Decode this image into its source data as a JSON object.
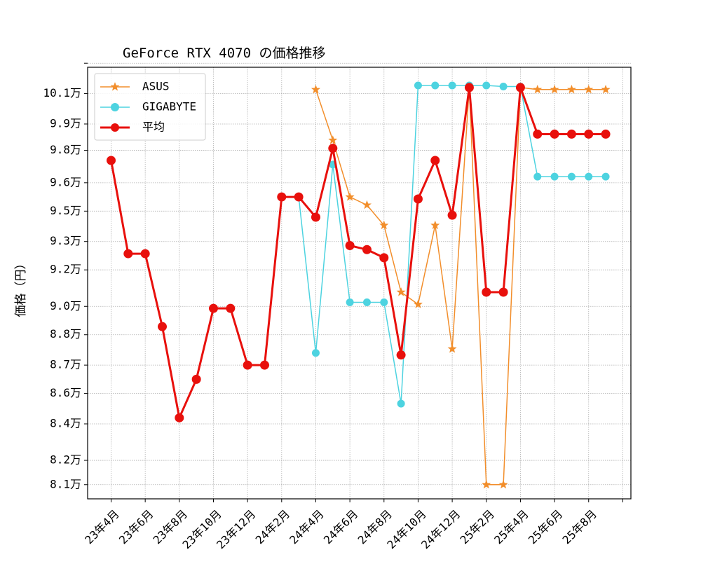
{
  "chart_data": {
    "type": "line",
    "title": "GeForce RTX 4070 の価格推移",
    "xlabel": "",
    "ylabel": "価格（円）",
    "ylim": [
      80300,
      101600
    ],
    "grid": true,
    "legend_position": "top-left",
    "x_tick_labels": [
      "23年4月",
      "23年6月",
      "23年8月",
      "23年10月",
      "23年12月",
      "24年2月",
      "24年4月",
      "24年6月",
      "24年8月",
      "24年10月",
      "24年12月",
      "25年2月",
      "25年4月",
      "25年6月",
      "25年8月"
    ],
    "y_ticks": [
      81000,
      82200,
      84000,
      85500,
      86900,
      88400,
      89800,
      91600,
      93000,
      94500,
      95900,
      97500,
      98800,
      100300,
      101800
    ],
    "y_tick_labels": [
      "8.1万",
      "8.2万",
      "8.4万",
      "8.6万",
      "8.7万",
      "8.8万",
      "9.0万",
      "9.2万",
      "9.3万",
      "9.5万",
      "9.6万",
      "9.8万",
      "9.9万",
      "10.1万"
    ],
    "x": [
      "2023-04",
      "2023-05",
      "2023-06",
      "2023-07",
      "2023-08",
      "2023-09",
      "2023-10",
      "2023-11",
      "2023-12",
      "2024-01",
      "2024-02",
      "2024-03",
      "2024-04",
      "2024-05",
      "2024-06",
      "2024-07",
      "2024-08",
      "2024-09",
      "2024-10",
      "2024-11",
      "2024-12",
      "2025-01",
      "2025-02",
      "2025-03",
      "2025-04",
      "2025-05",
      "2025-06",
      "2025-07",
      "2025-08",
      "2025-09"
    ],
    "series": [
      {
        "name": "ASUS",
        "color": "#f28e2b",
        "marker": "star",
        "line_width": 1.5,
        "values": [
          null,
          null,
          null,
          null,
          null,
          null,
          null,
          null,
          null,
          null,
          null,
          null,
          100500,
          98000,
          95200,
          94800,
          93800,
          90500,
          89900,
          93800,
          87700,
          100600,
          81000,
          81000,
          100600,
          100500,
          100500,
          100500,
          100500,
          100500
        ]
      },
      {
        "name": "GIGABYTE",
        "color": "#4dd3e0",
        "marker": "circle",
        "line_width": 1.5,
        "values": [
          null,
          null,
          null,
          null,
          null,
          null,
          null,
          null,
          null,
          null,
          null,
          95200,
          87500,
          96800,
          90000,
          90000,
          90000,
          85000,
          100700,
          100700,
          100700,
          100700,
          100700,
          100650,
          100650,
          96200,
          96200,
          96200,
          96200,
          96200
        ]
      },
      {
        "name": "平均",
        "color": "#e8100c",
        "marker": "circle",
        "line_width": 3,
        "values": [
          97000,
          92400,
          92400,
          88800,
          84300,
          86200,
          89700,
          89700,
          86900,
          86900,
          95200,
          95200,
          94200,
          97600,
          92800,
          92600,
          92200,
          87400,
          95100,
          97000,
          94300,
          100600,
          90500,
          90500,
          100600,
          98300,
          98300,
          98300,
          98300,
          98300
        ]
      }
    ]
  }
}
